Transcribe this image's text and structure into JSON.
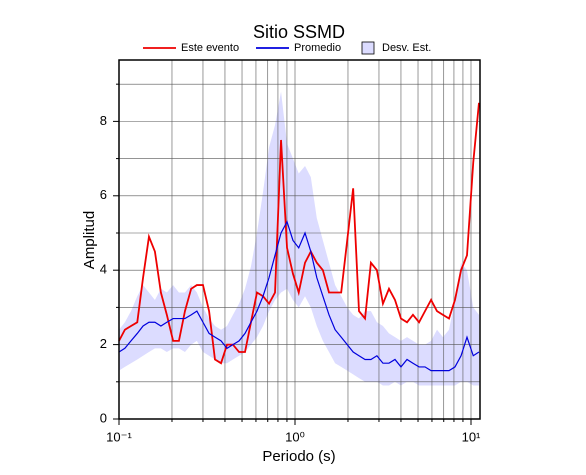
{
  "chart_data": {
    "type": "line",
    "title": "Sitio SSMD",
    "xlabel": "Periodo (s)",
    "ylabel": "Amplitud",
    "xscale": "log",
    "grid": true,
    "legend": "top",
    "xlim": [
      0.1,
      11.25
    ],
    "ylim": [
      0,
      9.65
    ],
    "xticks": [
      {
        "value": 0.1,
        "label": "10⁻¹"
      },
      {
        "value": 1,
        "label": "10⁰"
      },
      {
        "value": 10,
        "label": "10¹"
      }
    ],
    "xminor": [
      0.2,
      0.3,
      0.4,
      0.5,
      0.6,
      0.7,
      0.8,
      0.9,
      2,
      3,
      4,
      5,
      6,
      7,
      8,
      9
    ],
    "yticks": [
      0,
      2,
      4,
      6,
      8
    ],
    "yminor": [
      1,
      3,
      5,
      7,
      9
    ],
    "x": [
      0.1,
      0.108,
      0.117,
      0.127,
      0.137,
      0.148,
      0.16,
      0.173,
      0.187,
      0.203,
      0.219,
      0.237,
      0.257,
      0.277,
      0.3,
      0.325,
      0.351,
      0.38,
      0.411,
      0.444,
      0.481,
      0.52,
      0.562,
      0.608,
      0.658,
      0.712,
      0.77,
      0.833,
      0.901,
      0.974,
      1.05,
      1.14,
      1.23,
      1.33,
      1.44,
      1.56,
      1.69,
      1.83,
      1.98,
      2.14,
      2.31,
      2.5,
      2.7,
      2.92,
      3.16,
      3.42,
      3.7,
      4.0,
      4.33,
      4.68,
      5.07,
      5.48,
      5.93,
      6.41,
      6.93,
      7.5,
      8.11,
      8.78,
      9.49,
      10.3,
      11.1
    ],
    "series": [
      {
        "name": "Este evento",
        "color": "#ee0000",
        "values": [
          2.1,
          2.4,
          2.5,
          2.6,
          3.8,
          4.9,
          4.5,
          3.4,
          2.8,
          2.1,
          2.1,
          2.9,
          3.5,
          3.6,
          3.6,
          2.9,
          1.6,
          1.5,
          2.0,
          2.0,
          1.8,
          1.8,
          2.6,
          3.4,
          3.3,
          3.1,
          3.4,
          7.5,
          4.6,
          3.9,
          3.4,
          4.2,
          4.5,
          4.2,
          4.0,
          3.4,
          3.4,
          3.4,
          4.8,
          6.2,
          2.9,
          2.7,
          4.2,
          4.0,
          3.1,
          3.5,
          3.2,
          2.7,
          2.6,
          2.8,
          2.6,
          2.9,
          3.2,
          2.9,
          2.8,
          2.7,
          3.2,
          4.0,
          4.4,
          6.9,
          8.5
        ]
      },
      {
        "name": "Promedio",
        "color": "#0000dd",
        "values": [
          1.8,
          1.9,
          2.1,
          2.3,
          2.5,
          2.6,
          2.6,
          2.5,
          2.6,
          2.7,
          2.7,
          2.7,
          2.8,
          2.9,
          2.6,
          2.3,
          2.2,
          2.1,
          1.9,
          2.0,
          2.1,
          2.3,
          2.6,
          2.9,
          3.3,
          3.8,
          4.4,
          5.0,
          5.3,
          4.8,
          4.6,
          5.0,
          4.5,
          3.8,
          3.3,
          2.8,
          2.4,
          2.2,
          2.0,
          1.8,
          1.7,
          1.6,
          1.6,
          1.7,
          1.5,
          1.5,
          1.6,
          1.4,
          1.6,
          1.5,
          1.4,
          1.4,
          1.3,
          1.3,
          1.3,
          1.3,
          1.4,
          1.7,
          2.2,
          1.7,
          1.8
        ]
      },
      {
        "name": "Desv. Est.",
        "color": "#dcdcff",
        "upper": [
          2.4,
          2.6,
          2.9,
          3.3,
          3.6,
          3.4,
          3.2,
          3.5,
          3.4,
          3.6,
          3.4,
          3.4,
          3.6,
          3.4,
          3.0,
          2.7,
          2.5,
          2.4,
          2.5,
          2.8,
          3.1,
          3.5,
          4.1,
          5.0,
          6.1,
          7.3,
          7.9,
          8.8,
          7.4,
          7.0,
          6.6,
          6.8,
          6.5,
          5.4,
          4.8,
          4.2,
          3.6,
          3.3,
          3.0,
          2.8,
          2.7,
          2.9,
          2.9,
          2.6,
          2.5,
          2.3,
          2.2,
          2.1,
          2.2,
          2.1,
          2.0,
          2.0,
          2.1,
          2.4,
          2.2,
          2.4,
          3.2,
          4.2,
          4.0,
          3.0,
          2.8
        ],
        "lower": [
          1.3,
          1.4,
          1.5,
          1.6,
          1.7,
          1.8,
          1.9,
          1.9,
          1.8,
          1.9,
          1.9,
          1.8,
          2.0,
          2.1,
          1.8,
          1.7,
          1.6,
          1.5,
          1.5,
          1.6,
          1.7,
          1.8,
          2.0,
          2.2,
          2.5,
          2.9,
          3.2,
          3.4,
          3.5,
          3.2,
          3.0,
          3.3,
          3.0,
          2.5,
          2.1,
          1.8,
          1.5,
          1.4,
          1.3,
          1.2,
          1.1,
          1.0,
          1.0,
          1.0,
          0.9,
          0.9,
          1.0,
          0.9,
          1.0,
          1.0,
          0.9,
          0.9,
          0.9,
          0.9,
          0.9,
          0.9,
          0.9,
          1.0,
          1.0,
          0.9,
          0.9
        ]
      }
    ]
  }
}
